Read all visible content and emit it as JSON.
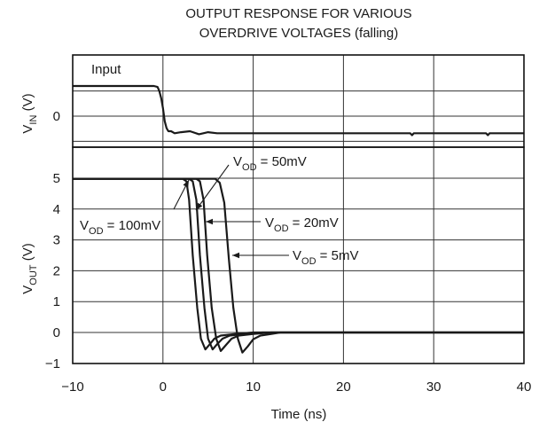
{
  "chart_data": {
    "type": "line",
    "title": [
      "OUTPUT RESPONSE FOR VARIOUS",
      "OVERDRIVE VOLTAGES (falling)"
    ],
    "xlabel": "Time (ns)",
    "xlim": [
      -10,
      40
    ],
    "xticks": [
      -10,
      0,
      10,
      20,
      30,
      40
    ],
    "xtick_labels": [
      "−10",
      "0",
      "10",
      "20",
      "30",
      "40"
    ],
    "grid": true,
    "panels": [
      {
        "id": "vin",
        "ylabel": {
          "main": "V",
          "sub": "IN",
          "tail": " (V)"
        },
        "ylim": [
          -0.5,
          0.6
        ],
        "yticks": [
          0
        ],
        "ytick_labels": [
          "0"
        ],
        "grid_y": [
          -0.6,
          -0.25,
          0,
          0.25
        ],
        "label": "Input",
        "series": [
          {
            "x": [
              -10,
              -1,
              -0.6,
              -0.4,
              -0.2,
              0,
              0.2,
              0.4,
              0.6,
              0.9,
              1.3,
              2,
              3,
              4,
              5,
              6,
              7,
              10,
              20,
              27.4,
              27.6,
              27.8,
              35,
              35.8,
              36,
              36.2,
              40
            ],
            "y": [
              0.3,
              0.3,
              0.29,
              0.25,
              0.18,
              0.08,
              -0.05,
              -0.12,
              -0.15,
              -0.15,
              -0.17,
              -0.16,
              -0.15,
              -0.18,
              -0.16,
              -0.17,
              -0.17,
              -0.17,
              -0.17,
              -0.17,
              -0.19,
              -0.17,
              -0.17,
              -0.17,
              -0.19,
              -0.17,
              -0.17
            ]
          }
        ]
      },
      {
        "id": "vout",
        "ylabel": {
          "main": "V",
          "sub": "OUT",
          "tail": " (V)"
        },
        "ylim": [
          -1,
          5.7
        ],
        "yticks": [
          -1,
          0,
          1,
          2,
          3,
          4,
          5
        ],
        "ytick_labels": [
          "−1",
          "0",
          "1",
          "2",
          "3",
          "4",
          "5"
        ],
        "grid_y": [
          -1,
          0,
          1,
          2,
          3,
          4,
          5
        ],
        "series": [
          {
            "name_main": "V",
            "name_sub": "OD",
            "name_tail": " = 100mV",
            "x": [
              -10,
              2.2,
              2.6,
              2.9,
              3.3,
              3.8,
              4.2,
              4.7,
              5.2,
              5.7,
              6.4,
              8,
              10,
              12,
              40
            ],
            "y": [
              4.98,
              4.98,
              4.9,
              4.3,
              2.5,
              0.8,
              -0.2,
              -0.55,
              -0.38,
              -0.2,
              -0.1,
              -0.05,
              0,
              0,
              0
            ]
          },
          {
            "name_main": "V",
            "name_sub": "OD",
            "name_tail": " = 50mV",
            "x": [
              -10,
              2.9,
              3.3,
              3.7,
              4.1,
              4.6,
              5.0,
              5.5,
              6.0,
              6.6,
              7.4,
              9,
              11,
              40
            ],
            "y": [
              4.98,
              4.98,
              4.9,
              4.3,
              2.5,
              0.8,
              -0.2,
              -0.55,
              -0.38,
              -0.2,
              -0.1,
              -0.05,
              0,
              0
            ]
          },
          {
            "name_main": "V",
            "name_sub": "OD",
            "name_tail": " = 20mV",
            "x": [
              -10,
              3.7,
              4.1,
              4.5,
              4.9,
              5.4,
              5.9,
              6.4,
              7.0,
              7.6,
              8.4,
              10,
              12,
              40
            ],
            "y": [
              4.98,
              4.98,
              4.9,
              4.3,
              2.5,
              0.8,
              -0.2,
              -0.6,
              -0.4,
              -0.2,
              -0.1,
              -0.05,
              0,
              0
            ]
          },
          {
            "name_main": "V",
            "name_sub": "OD",
            "name_tail": " = 5mV",
            "x": [
              -10,
              5.8,
              6.3,
              6.8,
              7.3,
              7.8,
              8.3,
              8.8,
              9.4,
              10.0,
              10.8,
              12,
              13,
              20,
              28,
              40
            ],
            "y": [
              4.98,
              4.98,
              4.85,
              4.2,
              2.4,
              0.8,
              -0.2,
              -0.65,
              -0.45,
              -0.22,
              -0.1,
              -0.05,
              0,
              0,
              0,
              0
            ]
          }
        ]
      }
    ],
    "annotations": [
      {
        "text_main": "V",
        "text_sub": "OD",
        "text_tail": " = 100mV",
        "points_to": "V_OD = 100mV"
      },
      {
        "text_main": "V",
        "text_sub": "OD",
        "text_tail": " = 50mV",
        "points_to": "V_OD = 50mV"
      },
      {
        "text_main": "V",
        "text_sub": "OD",
        "text_tail": " = 20mV",
        "points_to": "V_OD = 20mV"
      },
      {
        "text_main": "V",
        "text_sub": "OD",
        "text_tail": " = 5mV",
        "points_to": "V_OD = 5mV"
      }
    ]
  }
}
